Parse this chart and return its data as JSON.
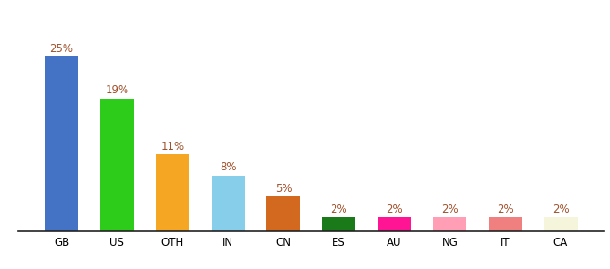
{
  "categories": [
    "GB",
    "US",
    "OTH",
    "IN",
    "CN",
    "ES",
    "AU",
    "NG",
    "IT",
    "CA"
  ],
  "values": [
    25,
    19,
    11,
    8,
    5,
    2,
    2,
    2,
    2,
    2
  ],
  "bar_colors": [
    "#4472c4",
    "#2ecc1a",
    "#f5a623",
    "#87ceeb",
    "#d2691e",
    "#1a7a1a",
    "#ff1493",
    "#ff9eb5",
    "#f08080",
    "#f5f5dc"
  ],
  "label_color": "#a0522d",
  "label_fontsize": 8.5,
  "xlabel_fontsize": 8.5,
  "ylim": [
    0,
    30
  ],
  "background_color": "#ffffff",
  "figsize": [
    6.8,
    3.0
  ],
  "dpi": 100,
  "bar_width": 0.6
}
